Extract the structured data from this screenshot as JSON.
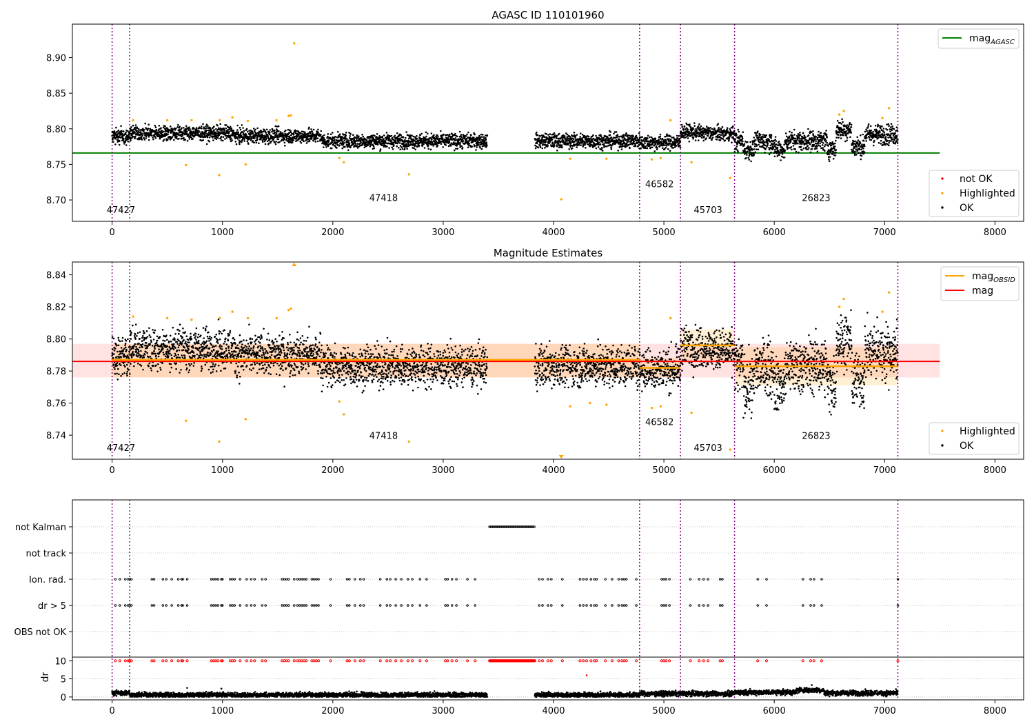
{
  "chart_data": [
    {
      "type": "scatter",
      "title": "AGASC ID 110101960",
      "xlim": [
        -360,
        8260
      ],
      "ylim": [
        8.67,
        8.947
      ],
      "x_ticks": [
        0,
        1000,
        2000,
        3000,
        4000,
        5000,
        6000,
        7000,
        8000
      ],
      "x_tick_labels": [
        "0",
        "1000",
        "2000",
        "3000",
        "4000",
        "5000",
        "6000",
        "7000",
        "8000"
      ],
      "y_ticks": [
        8.7,
        8.75,
        8.8,
        8.85,
        8.9
      ],
      "y_tick_labels": [
        "8.70",
        "8.75",
        "8.80",
        "8.85",
        "8.90"
      ],
      "legend_lines": [
        {
          "label": "mag",
          "sub": "AGASC",
          "color": "#008000"
        }
      ],
      "legend_points": [
        {
          "label": "not OK",
          "color": "#ff0000"
        },
        {
          "label": "Highlighted",
          "color": "#ffa500"
        },
        {
          "label": "OK",
          "color": "#000000"
        }
      ],
      "reference_line": {
        "y": 8.766,
        "x": [
          -360,
          7500
        ],
        "color": "#008000"
      },
      "highlighted_points": [
        [
          190,
          8.812
        ],
        [
          500,
          8.812
        ],
        [
          670,
          8.749
        ],
        [
          720,
          8.812
        ],
        [
          970,
          8.735
        ],
        [
          975,
          8.812
        ],
        [
          1090,
          8.816
        ],
        [
          1210,
          8.75
        ],
        [
          1230,
          8.811
        ],
        [
          1490,
          8.812
        ],
        [
          1600,
          8.818
        ],
        [
          1620,
          8.819
        ],
        [
          1650,
          8.92
        ],
        [
          2060,
          8.759
        ],
        [
          2100,
          8.753
        ],
        [
          2690,
          8.736
        ],
        [
          4070,
          8.701
        ],
        [
          4150,
          8.758
        ],
        [
          4480,
          8.758
        ],
        [
          4890,
          8.757
        ],
        [
          4970,
          8.759
        ],
        [
          5060,
          8.812
        ],
        [
          5250,
          8.753
        ],
        [
          5600,
          8.731
        ],
        [
          6590,
          8.82
        ],
        [
          6630,
          8.825
        ],
        [
          6980,
          8.815
        ],
        [
          7040,
          8.829
        ]
      ]
    },
    {
      "type": "scatter",
      "title": "Magnitude Estimates",
      "xlim": [
        -360,
        8260
      ],
      "ylim": [
        8.725,
        8.848
      ],
      "x_ticks": [
        0,
        1000,
        2000,
        3000,
        4000,
        5000,
        6000,
        7000,
        8000
      ],
      "x_tick_labels": [
        "0",
        "1000",
        "2000",
        "3000",
        "4000",
        "5000",
        "6000",
        "7000",
        "8000"
      ],
      "y_ticks": [
        8.74,
        8.76,
        8.78,
        8.8,
        8.82,
        8.84
      ],
      "y_tick_labels": [
        "8.74",
        "8.76",
        "8.78",
        "8.80",
        "8.82",
        "8.84"
      ],
      "legend_lines": [
        {
          "label": "mag",
          "sub": "OBSID",
          "color": "#ffa500"
        },
        {
          "label": "mag",
          "sub": "",
          "color": "#ff0000"
        }
      ],
      "legend_points": [
        {
          "label": "Highlighted",
          "color": "#ffa500"
        },
        {
          "label": "OK",
          "color": "#000000"
        }
      ],
      "mag_line": {
        "y": 8.786,
        "band": [
          8.776,
          8.797
        ],
        "x": [
          -360,
          7500
        ],
        "color": "#ff0000"
      },
      "obsid_mags": [
        {
          "x": [
            0,
            160
          ],
          "y": 8.787,
          "band": [
            8.776,
            8.797
          ]
        },
        {
          "x": [
            160,
            4780
          ],
          "y": 8.787,
          "band": [
            8.776,
            8.797
          ]
        },
        {
          "x": [
            4780,
            5150
          ],
          "y": 8.782,
          "band": [
            8.776,
            8.788
          ]
        },
        {
          "x": [
            5150,
            5640
          ],
          "y": 8.796,
          "band": [
            8.786,
            8.806
          ]
        },
        {
          "x": [
            5640,
            7120
          ],
          "y": 8.783,
          "band": [
            8.771,
            8.795
          ]
        }
      ],
      "highlighted_points": [
        [
          190,
          8.814
        ],
        [
          500,
          8.813
        ],
        [
          670,
          8.749
        ],
        [
          720,
          8.812
        ],
        [
          970,
          8.736
        ],
        [
          975,
          8.813
        ],
        [
          1090,
          8.817
        ],
        [
          1210,
          8.75
        ],
        [
          1230,
          8.813
        ],
        [
          1490,
          8.813
        ],
        [
          1600,
          8.818
        ],
        [
          1620,
          8.819
        ],
        [
          2060,
          8.761
        ],
        [
          2100,
          8.753
        ],
        [
          2690,
          8.736
        ],
        [
          4150,
          8.758
        ],
        [
          4330,
          8.76
        ],
        [
          4480,
          8.759
        ],
        [
          4890,
          8.757
        ],
        [
          4970,
          8.758
        ],
        [
          5060,
          8.813
        ],
        [
          5250,
          8.754
        ],
        [
          5600,
          8.731
        ],
        [
          6590,
          8.82
        ],
        [
          6630,
          8.825
        ],
        [
          6980,
          8.817
        ],
        [
          7040,
          8.829
        ]
      ],
      "offscale_markers": [
        {
          "x": 1650,
          "direction": "up"
        },
        {
          "x": 4070,
          "direction": "down"
        }
      ]
    },
    {
      "type": "scatter",
      "title": "",
      "xlim": [
        -360,
        8260
      ],
      "x_ticks": [
        0,
        1000,
        2000,
        3000,
        4000,
        5000,
        6000,
        7000,
        8000
      ],
      "x_tick_labels": [
        "0",
        "1000",
        "2000",
        "3000",
        "4000",
        "5000",
        "6000",
        "7000",
        "8000"
      ],
      "flag_rows": [
        "not Kalman",
        "not track",
        "Ion. rad.",
        "dr > 5",
        "OBS not OK"
      ],
      "not_kalman_x": [
        3420,
        3830
      ],
      "flag_x": [
        30,
        70,
        120,
        145,
        160,
        175,
        360,
        380,
        460,
        490,
        540,
        600,
        630,
        640,
        680,
        900,
        920,
        940,
        960,
        990,
        1000,
        1070,
        1090,
        1110,
        1160,
        1220,
        1260,
        1290,
        1360,
        1390,
        1540,
        1560,
        1580,
        1600,
        1650,
        1680,
        1700,
        1720,
        1740,
        1760,
        1810,
        1830,
        1850,
        1870,
        1980,
        2130,
        2150,
        2200,
        2250,
        2280,
        2430,
        2490,
        2520,
        2570,
        2620,
        2680,
        2720,
        2790,
        2850,
        3020,
        3040,
        3080,
        3120,
        3220,
        3290,
        3870,
        3900,
        3950,
        3980,
        4080,
        4240,
        4270,
        4300,
        4340,
        4370,
        4390,
        4470,
        4530,
        4590,
        4620,
        4640,
        4660,
        4750,
        4980,
        5000,
        5020,
        5050,
        5240,
        5320,
        5360,
        5400,
        5510,
        5530,
        5850,
        5930,
        6260,
        6330,
        6360,
        6430,
        7120
      ],
      "dr_ylim": [
        -0.8,
        11
      ],
      "dr_ticks": [
        0,
        5,
        10
      ],
      "dr_tick_labels": [
        "0",
        "5",
        "10"
      ],
      "dr_ylabel": "dr",
      "dr_outliers": [
        [
          680,
          2.5
        ],
        [
          990,
          2.3
        ],
        [
          4300,
          6
        ],
        [
          6340,
          3.3
        ]
      ]
    }
  ],
  "obsids": [
    {
      "label": "47427",
      "x": 80,
      "level": 0.06
    },
    {
      "label": "47418",
      "x": 2460,
      "level": 0.12
    },
    {
      "label": "46582",
      "x": 4960,
      "level": 0.19
    },
    {
      "label": "45703",
      "x": 5400,
      "level": 0.06
    },
    {
      "label": "26823",
      "x": 6380,
      "level": 0.12
    }
  ],
  "obsid_boundaries": [
    0,
    160,
    4780,
    5150,
    5640,
    7120
  ],
  "data_gaps": [
    [
      3400,
      3830
    ]
  ]
}
